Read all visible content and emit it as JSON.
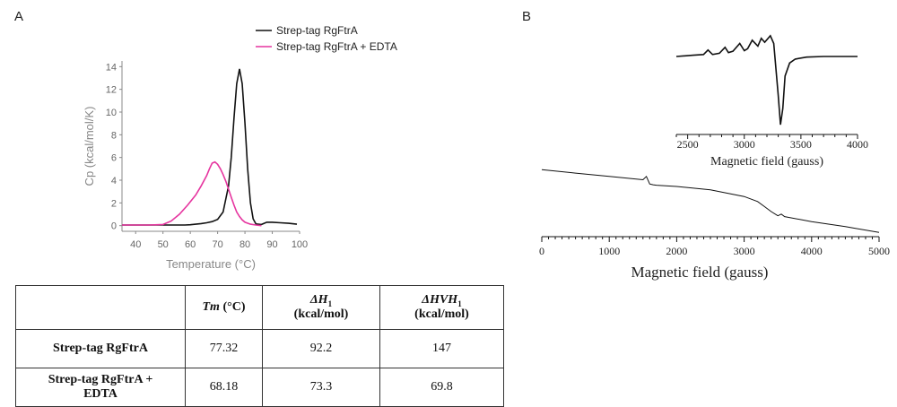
{
  "panel_a_label": "A",
  "panel_b_label": "B",
  "chart_data": [
    {
      "type": "line",
      "xlabel": "Temperature (°C)",
      "ylabel": "Cp (kcal/mol/K)",
      "xlim": [
        35,
        100
      ],
      "ylim": [
        -0.5,
        14.5
      ],
      "xticks": [
        40,
        50,
        60,
        70,
        80,
        90,
        100
      ],
      "yticks": [
        0,
        2,
        4,
        6,
        8,
        10,
        12,
        14
      ],
      "legend_position": "top-right",
      "series": [
        {
          "name": "Strep-tag RgFtrA",
          "color": "#111111",
          "x": [
            35,
            45,
            55,
            58,
            60,
            62,
            64,
            66,
            68,
            70,
            72,
            74,
            75,
            76,
            77,
            78,
            79,
            80,
            81,
            82,
            83,
            84,
            86,
            88,
            90,
            93,
            96,
            99
          ],
          "y": [
            0.05,
            0.05,
            0.05,
            0.05,
            0.08,
            0.12,
            0.18,
            0.25,
            0.35,
            0.55,
            1.2,
            3.5,
            6.0,
            9.5,
            12.5,
            13.8,
            12.5,
            9.0,
            5.0,
            2.0,
            0.6,
            0.15,
            0.1,
            0.3,
            0.3,
            0.25,
            0.2,
            0.12
          ]
        },
        {
          "name": "Strep-tag RgFtrA + EDTA",
          "color": "#e6359f",
          "x": [
            35,
            45,
            50,
            53,
            56,
            59,
            62,
            64,
            66,
            67,
            68,
            69,
            70,
            71,
            72,
            73,
            74,
            75,
            76,
            77,
            78,
            79,
            80,
            82,
            84,
            86
          ],
          "y": [
            0.05,
            0.05,
            0.1,
            0.4,
            1.0,
            1.8,
            2.7,
            3.5,
            4.4,
            5.0,
            5.5,
            5.6,
            5.4,
            5.0,
            4.5,
            3.9,
            3.2,
            2.5,
            1.8,
            1.2,
            0.8,
            0.5,
            0.3,
            0.12,
            0.05,
            0.0
          ]
        }
      ]
    },
    {
      "type": "line",
      "xlabel": "Magnetic field (gauss)",
      "ylabel": "",
      "xlim": [
        0,
        5000
      ],
      "ylim": [
        -3,
        6
      ],
      "xticks": [
        0,
        1000,
        2000,
        3000,
        4000,
        5000
      ],
      "series": [
        {
          "color": "#111111",
          "x": [
            0,
            500,
            1000,
            1500,
            1550,
            1600,
            1650,
            1700,
            2000,
            2500,
            3000,
            3200,
            3300,
            3400,
            3500,
            3550,
            3600,
            4000,
            4500,
            5000
          ],
          "y": [
            5.0,
            4.6,
            4.2,
            3.8,
            4.2,
            3.3,
            3.2,
            3.15,
            3.0,
            2.6,
            1.8,
            1.2,
            0.6,
            0.0,
            -0.5,
            -0.3,
            -0.6,
            -1.2,
            -1.8,
            -2.5
          ]
        }
      ]
    },
    {
      "type": "line",
      "xlabel": "Magnetic field (gauss)",
      "ylabel": "",
      "xlim": [
        2400,
        4000
      ],
      "ylim": [
        -12,
        4
      ],
      "xticks": [
        2500,
        3000,
        3500,
        4000
      ],
      "series": [
        {
          "color": "#111111",
          "x": [
            2400,
            2550,
            2640,
            2680,
            2720,
            2780,
            2830,
            2860,
            2900,
            2960,
            3000,
            3030,
            3070,
            3120,
            3150,
            3180,
            3230,
            3260,
            3280,
            3300,
            3320,
            3340,
            3360,
            3400,
            3450,
            3550,
            3700,
            4000
          ],
          "y": [
            0.0,
            0.2,
            0.3,
            1.0,
            0.3,
            0.5,
            1.4,
            0.6,
            0.8,
            2.0,
            0.9,
            1.2,
            2.5,
            1.6,
            2.8,
            2.2,
            3.2,
            2.0,
            -2.0,
            -6.0,
            -10.5,
            -8.0,
            -3.0,
            -1.0,
            -0.4,
            -0.1,
            0.0,
            0.0
          ]
        }
      ]
    }
  ],
  "table": {
    "headers": [
      "",
      "Tm (°C)",
      "ΔH₁ (kcal/mol)",
      "ΔHVH₁ (kcal/mol)"
    ],
    "header_top": [
      "",
      "Tm",
      "ΔH",
      "ΔHVH"
    ],
    "header_sub": [
      "",
      "",
      "1",
      "1"
    ],
    "header_units": [
      "",
      "(°C)",
      "(kcal/mol)",
      "(kcal/mol)"
    ],
    "rows": [
      {
        "name": "Strep-tag RgFtrA",
        "tm": "77.32",
        "dh": "92.2",
        "dhvh": "147"
      },
      {
        "name": "Strep-tag RgFtrA + EDTA",
        "tm": "68.18",
        "dh": "73.3",
        "dhvh": "69.8"
      }
    ]
  }
}
